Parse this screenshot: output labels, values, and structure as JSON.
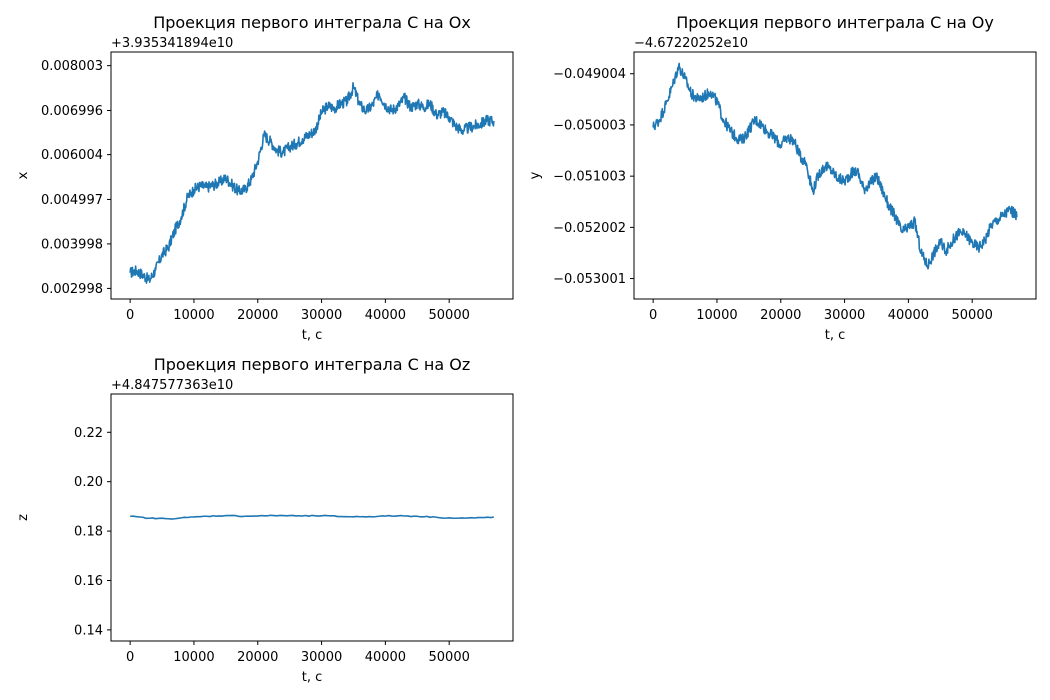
{
  "chart_data": [
    {
      "type": "line",
      "title": "Проекция первого интеграла C на Ox",
      "xlabel": "t, c",
      "ylabel": "x",
      "offset_text": "+3.935341894e10",
      "xlim": [
        -3000,
        60000
      ],
      "ylim": [
        0.00276,
        0.00831
      ],
      "xticks": [
        0,
        10000,
        20000,
        30000,
        40000,
        50000
      ],
      "yticks": [
        0.002998,
        0.003998,
        0.004997,
        0.006004,
        0.006996,
        0.008003
      ],
      "yticklabels": [
        "0.002998",
        "0.003998",
        "0.004997",
        "0.006004",
        "0.006996",
        "0.008003"
      ],
      "series": [
        {
          "color": "#1f77b4",
          "x": [
            0,
            1000,
            2000,
            3000,
            4000,
            5000,
            6000,
            7000,
            8000,
            9000,
            10000,
            11000,
            12000,
            13000,
            14000,
            15000,
            16000,
            17000,
            18000,
            19000,
            20000,
            21000,
            22000,
            23000,
            24000,
            25000,
            26000,
            27000,
            28000,
            29000,
            30000,
            31000,
            32000,
            33000,
            34000,
            35000,
            36000,
            37000,
            38000,
            39000,
            40000,
            41000,
            42000,
            43000,
            44000,
            45000,
            46000,
            47000,
            48000,
            49000,
            50000,
            51000,
            52000,
            53000,
            54000,
            55000,
            56000,
            57000
          ],
          "y": [
            0.00335,
            0.0034,
            0.0033,
            0.00318,
            0.00342,
            0.00375,
            0.00392,
            0.0043,
            0.0046,
            0.00505,
            0.00522,
            0.0053,
            0.00527,
            0.00532,
            0.00538,
            0.00548,
            0.00532,
            0.00518,
            0.00522,
            0.00545,
            0.00585,
            0.00645,
            0.0063,
            0.0061,
            0.00605,
            0.00618,
            0.00625,
            0.00636,
            0.00645,
            0.00655,
            0.00695,
            0.0071,
            0.00705,
            0.00715,
            0.0072,
            0.00752,
            0.00712,
            0.00698,
            0.00712,
            0.00738,
            0.00712,
            0.007,
            0.0071,
            0.00728,
            0.00707,
            0.00715,
            0.00707,
            0.00715,
            0.0069,
            0.00696,
            0.00685,
            0.00665,
            0.00655,
            0.0066,
            0.00665,
            0.0067,
            0.00678,
            0.00676
          ]
        }
      ]
    },
    {
      "type": "line",
      "title": "Проекция первого интеграла C на Oy",
      "xlabel": "t, c",
      "ylabel": "y",
      "offset_text": "−4.67220252e10",
      "xlim": [
        -3000,
        60000
      ],
      "ylim": [
        -0.0534,
        -0.04858
      ],
      "xticks": [
        0,
        10000,
        20000,
        30000,
        40000,
        50000
      ],
      "yticks": [
        -0.053001,
        -0.052002,
        -0.051003,
        -0.050003,
        -0.049004
      ],
      "yticklabels": [
        "−0.053001",
        "−0.052002",
        "−0.051003",
        "−0.050003",
        "−0.049004"
      ],
      "series": [
        {
          "color": "#1f77b4",
          "x": [
            0,
            1000,
            2000,
            3000,
            4000,
            5000,
            6000,
            7000,
            8000,
            9000,
            10000,
            11000,
            12000,
            13000,
            14000,
            15000,
            16000,
            17000,
            18000,
            19000,
            20000,
            21000,
            22000,
            23000,
            24000,
            25000,
            26000,
            27000,
            28000,
            29000,
            30000,
            31000,
            32000,
            33000,
            34000,
            35000,
            36000,
            37000,
            38000,
            39000,
            40000,
            41000,
            42000,
            43000,
            44000,
            45000,
            46000,
            47000,
            48000,
            49000,
            50000,
            51000,
            52000,
            53000,
            54000,
            55000,
            56000,
            57000
          ],
          "y": [
            -0.05005,
            -0.0499,
            -0.0496,
            -0.04925,
            -0.04885,
            -0.0491,
            -0.0494,
            -0.0495,
            -0.04945,
            -0.04935,
            -0.04955,
            -0.0499,
            -0.0501,
            -0.05025,
            -0.0503,
            -0.0501,
            -0.0499,
            -0.05,
            -0.05015,
            -0.05025,
            -0.0504,
            -0.05025,
            -0.0503,
            -0.0506,
            -0.05075,
            -0.0513,
            -0.05095,
            -0.0508,
            -0.0509,
            -0.05105,
            -0.0511,
            -0.05095,
            -0.0509,
            -0.05125,
            -0.05115,
            -0.051,
            -0.0513,
            -0.0516,
            -0.0518,
            -0.0521,
            -0.052,
            -0.0519,
            -0.0525,
            -0.05275,
            -0.0525,
            -0.0523,
            -0.05245,
            -0.05225,
            -0.0521,
            -0.05215,
            -0.0523,
            -0.0524,
            -0.05225,
            -0.05195,
            -0.05185,
            -0.05175,
            -0.05165,
            -0.0518
          ]
        }
      ]
    },
    {
      "type": "line",
      "title": "Проекция первого интеграла C на Oz",
      "xlabel": "t, c",
      "ylabel": "z",
      "offset_text": "+4.847577363e10",
      "xlim": [
        -3000,
        60000
      ],
      "ylim": [
        0.1355,
        0.2355
      ],
      "xticks": [
        0,
        10000,
        20000,
        30000,
        40000,
        50000
      ],
      "yticks": [
        0.14,
        0.16,
        0.18,
        0.2,
        0.22
      ],
      "yticklabels": [
        "0.14",
        "0.16",
        "0.18",
        "0.20",
        "0.22"
      ],
      "series": [
        {
          "color": "#1f77b4",
          "x": [
            0,
            3000,
            6000,
            9000,
            12000,
            15000,
            18000,
            21000,
            24000,
            27000,
            30000,
            33000,
            36000,
            39000,
            42000,
            45000,
            48000,
            51000,
            54000,
            57000
          ],
          "y": [
            0.186,
            0.1852,
            0.185,
            0.1855,
            0.186,
            0.1863,
            0.186,
            0.1862,
            0.1863,
            0.1861,
            0.1862,
            0.1859,
            0.1858,
            0.186,
            0.1862,
            0.186,
            0.1856,
            0.1852,
            0.1853,
            0.1857
          ]
        }
      ]
    }
  ]
}
